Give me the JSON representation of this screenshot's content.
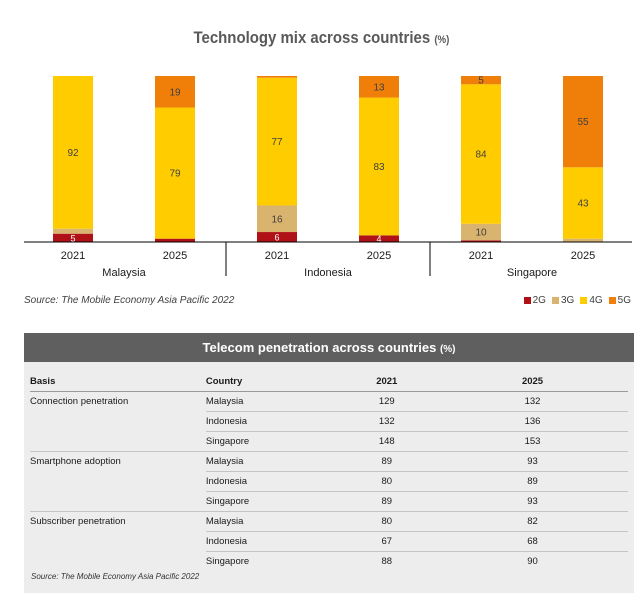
{
  "chart_data": {
    "type": "bar",
    "stacked": true,
    "title": "Technology mix across countries",
    "title_unit": "(%)",
    "series": [
      {
        "name": "2G",
        "color": "#b01116"
      },
      {
        "name": "3G",
        "color": "#d9b46f"
      },
      {
        "name": "4G",
        "color": "#ffcc00"
      },
      {
        "name": "5G",
        "color": "#f07f09"
      }
    ],
    "groups": [
      {
        "country": "Malaysia",
        "bars": [
          {
            "year": "2021",
            "values": [
              5,
              3,
              92,
              0
            ],
            "labels": [
              "5",
              "",
              "92",
              ""
            ]
          },
          {
            "year": "2025",
            "values": [
              2,
              0,
              79,
              19
            ],
            "labels": [
              "",
              "",
              "79",
              "19"
            ]
          }
        ]
      },
      {
        "country": "Indonesia",
        "bars": [
          {
            "year": "2021",
            "values": [
              6,
              16,
              77,
              1
            ],
            "labels": [
              "6",
              "16",
              "77",
              ""
            ]
          },
          {
            "year": "2025",
            "values": [
              4,
              0,
              83,
              13
            ],
            "labels": [
              "4",
              "",
              "83",
              "13"
            ]
          }
        ]
      },
      {
        "country": "Singapore",
        "bars": [
          {
            "year": "2021",
            "values": [
              1,
              10,
              84,
              5
            ],
            "labels": [
              "",
              "10",
              "84",
              "5"
            ]
          },
          {
            "year": "2025",
            "values": [
              0,
              2,
              43,
              55
            ],
            "labels": [
              "",
              "",
              "43",
              "55"
            ]
          }
        ]
      }
    ],
    "ylim": [
      0,
      100
    ],
    "legend_position": "bottom-right",
    "source": "Source: The Mobile Economy Asia Pacific 2022"
  },
  "table": {
    "title": "Telecom penetration across countries",
    "title_unit": "(%)",
    "headers": [
      "Basis",
      "Country",
      "2021",
      "2025"
    ],
    "rows": [
      [
        "Connection penetration",
        "Malaysia",
        "129",
        "132"
      ],
      [
        "",
        "Indonesia",
        "132",
        "136"
      ],
      [
        "",
        "Singapore",
        "148",
        "153"
      ],
      [
        "Smartphone adoption",
        "Malaysia",
        "89",
        "93"
      ],
      [
        "",
        "Indonesia",
        "80",
        "89"
      ],
      [
        "",
        "Singapore",
        "89",
        "93"
      ],
      [
        "Subscriber penetration",
        "Malaysia",
        "80",
        "82"
      ],
      [
        "",
        "Indonesia",
        "67",
        "68"
      ],
      [
        "",
        "Singapore",
        "88",
        "90"
      ]
    ],
    "source": "Source: The Mobile Economy Asia Pacific 2022"
  }
}
